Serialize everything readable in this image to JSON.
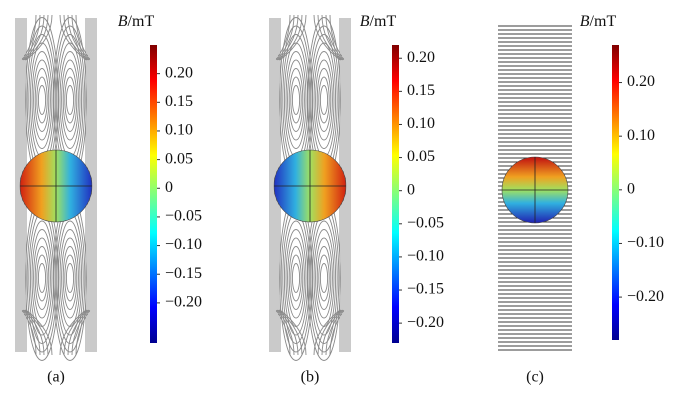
{
  "panels": [
    {
      "label": "(a)",
      "colorbar": {
        "symbol": "B",
        "unit": "/mT",
        "ylim": [
          -0.27,
          0.25
        ],
        "yticks": [
          {
            "value": 0.2,
            "label": "0.20"
          },
          0.15,
          {
            "value": 0.1,
            "label": "0.10"
          },
          0.05,
          0,
          {
            "value": -0.05,
            "label": "−0.05"
          },
          {
            "value": -0.1,
            "label": "−0.10"
          },
          {
            "value": -0.15,
            "label": "−0.15"
          },
          {
            "value": -0.2,
            "label": "−0.20"
          }
        ]
      }
    },
    {
      "label": "(b)",
      "colorbar": {
        "symbol": "B",
        "unit": "/mT",
        "ylim": [
          -0.23,
          0.22
        ],
        "yticks": [
          {
            "value": 0.2,
            "label": "0.20"
          },
          0.15,
          {
            "value": 0.1,
            "label": "0.10"
          },
          0.05,
          0,
          {
            "value": -0.05,
            "label": "−0.05"
          },
          {
            "value": -0.1,
            "label": "−0.10"
          },
          {
            "value": -0.15,
            "label": "−0.15"
          },
          {
            "value": -0.2,
            "label": "−0.20"
          }
        ]
      }
    },
    {
      "label": "(c)",
      "colorbar": {
        "symbol": "B",
        "unit": "/mT",
        "ylim": [
          -0.28,
          0.27
        ],
        "yticks": [
          {
            "value": 0.2,
            "label": "0.20"
          },
          {
            "value": 0.1,
            "label": "0.10"
          },
          0,
          {
            "value": -0.1,
            "label": "−0.10"
          },
          {
            "value": -0.2,
            "label": "−0.20"
          }
        ]
      }
    }
  ]
}
